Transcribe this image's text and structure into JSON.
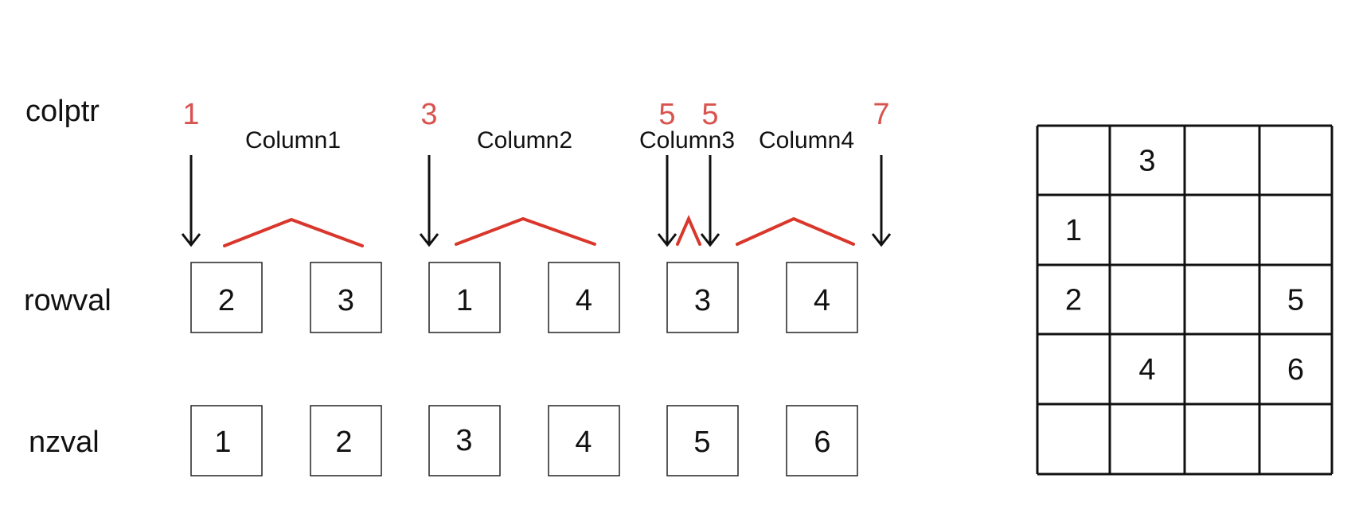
{
  "labels": {
    "colptr": "colptr",
    "rowval": "rowval",
    "nzval": "nzval"
  },
  "colptr": [
    "1",
    "3",
    "5",
    "5",
    "7"
  ],
  "columns": [
    "Column1",
    "Column2",
    "Column3",
    "Column4"
  ],
  "rowval": [
    "2",
    "3",
    "1",
    "4",
    "3",
    "4"
  ],
  "nzval": [
    "1",
    "2",
    "3",
    "4",
    "5",
    "6"
  ],
  "matrix": {
    "rows": 5,
    "cols": 4,
    "cells": [
      [
        "",
        "3",
        "",
        ""
      ],
      [
        "1",
        "",
        "",
        ""
      ],
      [
        "2",
        "",
        "",
        "5"
      ],
      [
        "",
        "4",
        "",
        "6"
      ],
      [
        "",
        "",
        "",
        ""
      ]
    ]
  },
  "colors": {
    "pointer": "#d9534f",
    "brace": "#d9372c",
    "ink": "#111111"
  }
}
